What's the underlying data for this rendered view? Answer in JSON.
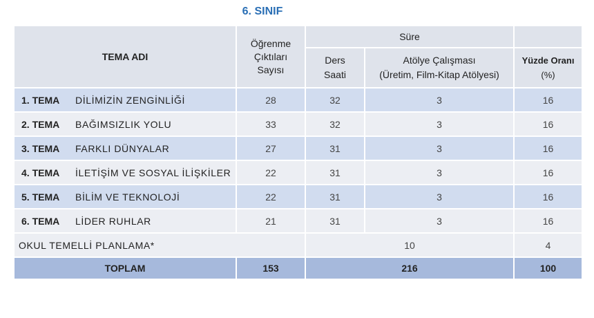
{
  "title": "6. SINIF",
  "headers": {
    "tema_adi": "TEMA ADI",
    "ogrenme": "Öğrenme Çıktıları Sayısı",
    "sure": "Süre",
    "ders_saati": "Ders Saati",
    "atolye": "Atölye Çalışması",
    "atolye_detail": "(Üretim, Film-Kitap Atölyesi)",
    "yuzde": "Yüzde Oranı",
    "yuzde_unit": "(%)"
  },
  "rows": [
    {
      "no": "1. TEMA",
      "name": "DİLİMİZİN ZENGİNLİĞİ",
      "ogrenme": "28",
      "ders": "32",
      "atolye": "3",
      "yuzde": "16"
    },
    {
      "no": "2. TEMA",
      "name": "BAĞIMSIZLIK YOLU",
      "ogrenme": "33",
      "ders": "32",
      "atolye": "3",
      "yuzde": "16"
    },
    {
      "no": "3. TEMA",
      "name": "FARKLI DÜNYALAR",
      "ogrenme": "27",
      "ders": "31",
      "atolye": "3",
      "yuzde": "16"
    },
    {
      "no": "4. TEMA",
      "name": "İLETİŞİM VE SOSYAL İLİŞKİLER",
      "ogrenme": "22",
      "ders": "31",
      "atolye": "3",
      "yuzde": "16"
    },
    {
      "no": "5. TEMA",
      "name": "BİLİM VE TEKNOLOJİ",
      "ogrenme": "22",
      "ders": "31",
      "atolye": "3",
      "yuzde": "16"
    },
    {
      "no": "6. TEMA",
      "name": "LİDER RUHLAR",
      "ogrenme": "21",
      "ders": "31",
      "atolye": "3",
      "yuzde": "16"
    }
  ],
  "okul": {
    "label": "OKUL TEMELLİ PLANLAMA*",
    "sure": "10",
    "yuzde": "4"
  },
  "total": {
    "label": "TOPLAM",
    "ogrenme": "153",
    "sure": "216",
    "yuzde": "100"
  }
}
